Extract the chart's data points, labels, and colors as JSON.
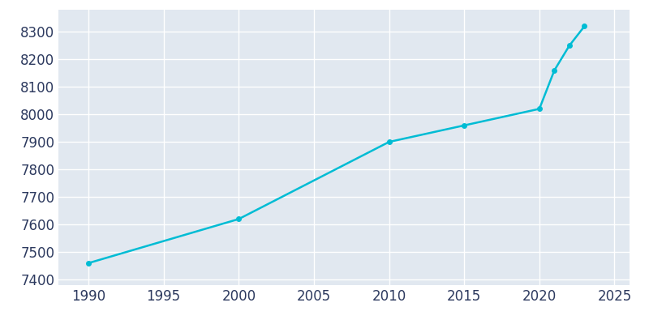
{
  "years": [
    1990,
    2000,
    2010,
    2015,
    2020,
    2021,
    2022,
    2023
  ],
  "population": [
    7460,
    7620,
    7900,
    7960,
    8020,
    8160,
    8250,
    8320
  ],
  "line_color": "#00BCD4",
  "marker_color": "#00BCD4",
  "bg_color": "#E1E8F0",
  "plot_bg_color": "#E1E8F0",
  "outer_bg_color": "#FFFFFF",
  "grid_color": "#FFFFFF",
  "text_color": "#2D3A5F",
  "xlim": [
    1988,
    2026
  ],
  "ylim": [
    7380,
    8380
  ],
  "xticks": [
    1990,
    1995,
    2000,
    2005,
    2010,
    2015,
    2020,
    2025
  ],
  "yticks": [
    7400,
    7500,
    7600,
    7700,
    7800,
    7900,
    8000,
    8100,
    8200,
    8300
  ],
  "tick_fontsize": 12,
  "marker_size": 4,
  "line_width": 1.8
}
